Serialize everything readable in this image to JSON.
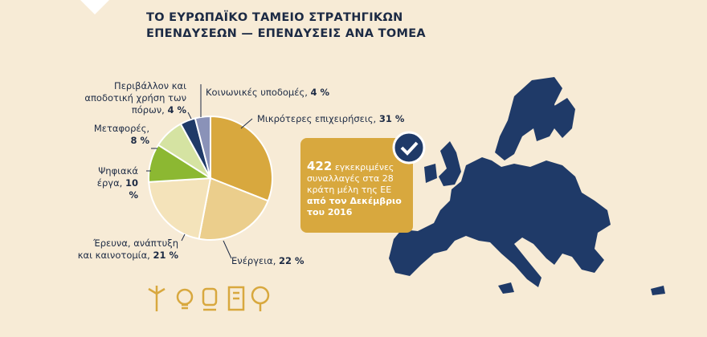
{
  "chart_data": {
    "type": "pie",
    "title": "ΤΟ ΕΥΡΩΠΑΪΚΟ ΤΑΜΕΙΟ ΣΤΡΑΤΗΓΙΚΩΝ ΕΠΕΝΔΥΣΕΩΝ — ΕΠΕΝΔΥΣΕΙΣ ΑΝΑ ΤΟΜΕΑ",
    "categories": [
      "Μικρότερες επιχειρήσεις,",
      "Ενέργεια,",
      "Έρευνα, ανάπτυξη και καινοτομία,",
      "Ψηφιακά έργα,",
      "Μεταφορές,",
      "Περιβάλλον και αποδοτική χρήση των πόρων,",
      "Κοινωνικές υποδομές,"
    ],
    "values": [
      31,
      22,
      21,
      10,
      8,
      4,
      4
    ],
    "value_labels": [
      "31 %",
      "22 %",
      "21 %",
      "10 %",
      "8 %",
      "4 %",
      "4 %"
    ],
    "colors": [
      "#d8a83e",
      "#ebce8c",
      "#f4e3ba",
      "#8cb832",
      "#d5e3a2",
      "#1f3a68",
      "#8a92b8"
    ]
  },
  "callout": {
    "number": "422",
    "text": "εγκεκριμένες συναλλαγές στα 28 κράτη μέλη της ΕΕ",
    "emphasis": "από τον Δεκέμβριο του 2016"
  }
}
